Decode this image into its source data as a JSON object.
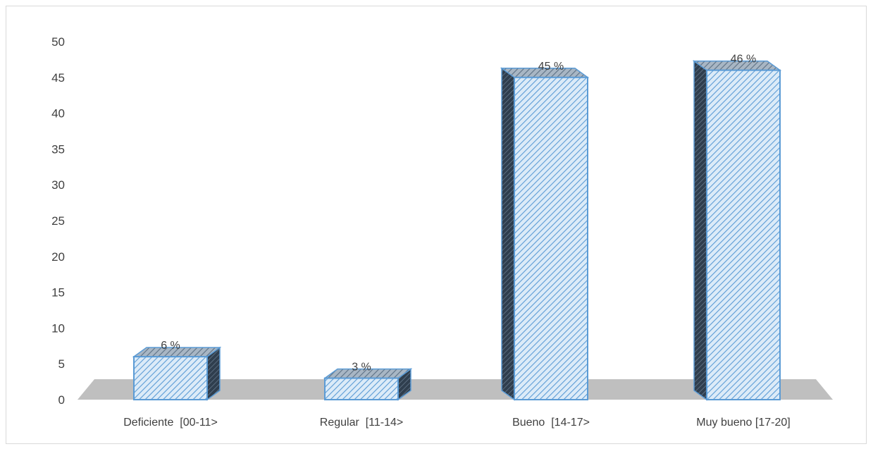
{
  "chart_data": {
    "type": "bar",
    "title": "",
    "xlabel": "",
    "ylabel": "",
    "categories": [
      "Deficiente  [00-11>",
      "Regular  [11-14>",
      "Bueno  [14-17>",
      "Muy bueno [17-20]"
    ],
    "values": [
      6,
      3,
      45,
      46
    ],
    "data_labels": [
      "6 %",
      "3 %",
      "45 %",
      "46 %"
    ],
    "ylim": [
      0,
      50
    ],
    "yticks": [
      0,
      5,
      10,
      15,
      20,
      25,
      30,
      35,
      40,
      45,
      50
    ],
    "grid": false,
    "legend": "none",
    "style": "3d-column-hatched",
    "colors": {
      "bar_fill": "#dcebf8",
      "bar_hatch": "#5b9bd5",
      "bar_border": "#5b9bd5",
      "bar_top": "#9fb0c0",
      "bar_side": "#2f3e4e",
      "floor": "#bfbfbf",
      "text": "#404040"
    }
  }
}
